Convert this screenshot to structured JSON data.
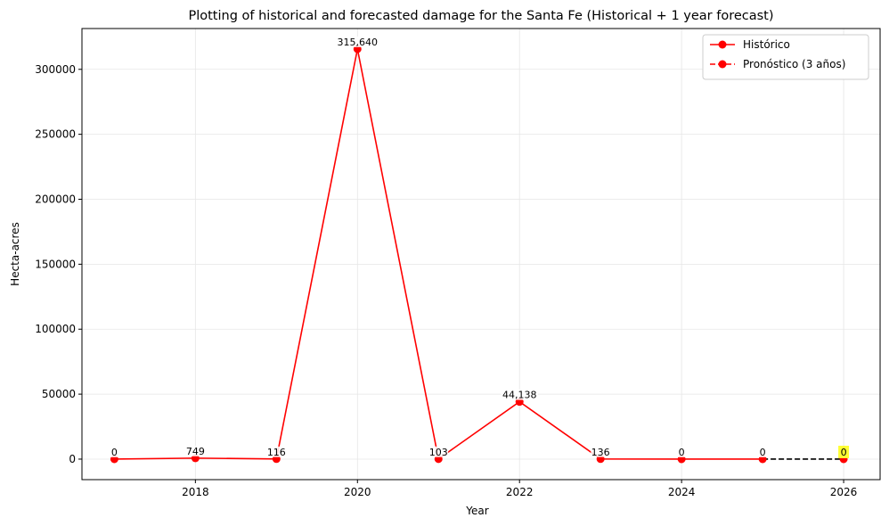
{
  "chart_data": {
    "type": "line",
    "title": "Plotting of historical and forecasted damage for the Santa Fe (Historical + 1 year forecast)",
    "xlabel": "Year",
    "ylabel": "Hecta-acres",
    "xlim": [
      2016.6,
      2026.45
    ],
    "ylim": [
      -15800,
      331400
    ],
    "xticks": [
      2018,
      2020,
      2022,
      2024,
      2026
    ],
    "yticks": [
      0,
      50000,
      100000,
      150000,
      200000,
      250000,
      300000
    ],
    "grid": true,
    "legend_position": "top-right",
    "series": [
      {
        "name": "Histórico",
        "style": "solid",
        "color": "#ff0000",
        "x": [
          2017,
          2018,
          2019,
          2020,
          2021,
          2022,
          2023,
          2024,
          2025
        ],
        "y": [
          0,
          749,
          116,
          315640,
          103,
          44138,
          136,
          0,
          0
        ],
        "labels": [
          "0",
          "749",
          "116",
          "315,640",
          "103",
          "44,138",
          "136",
          "0",
          "0"
        ]
      },
      {
        "name": "Pronóstico (3 años)",
        "style": "dashed",
        "color": "#000000",
        "marker_color": "#ff0000",
        "x": [
          2025,
          2026
        ],
        "y": [
          0,
          0
        ],
        "labels": [
          "",
          "0"
        ],
        "highlight_color": "#ffff33"
      }
    ]
  }
}
